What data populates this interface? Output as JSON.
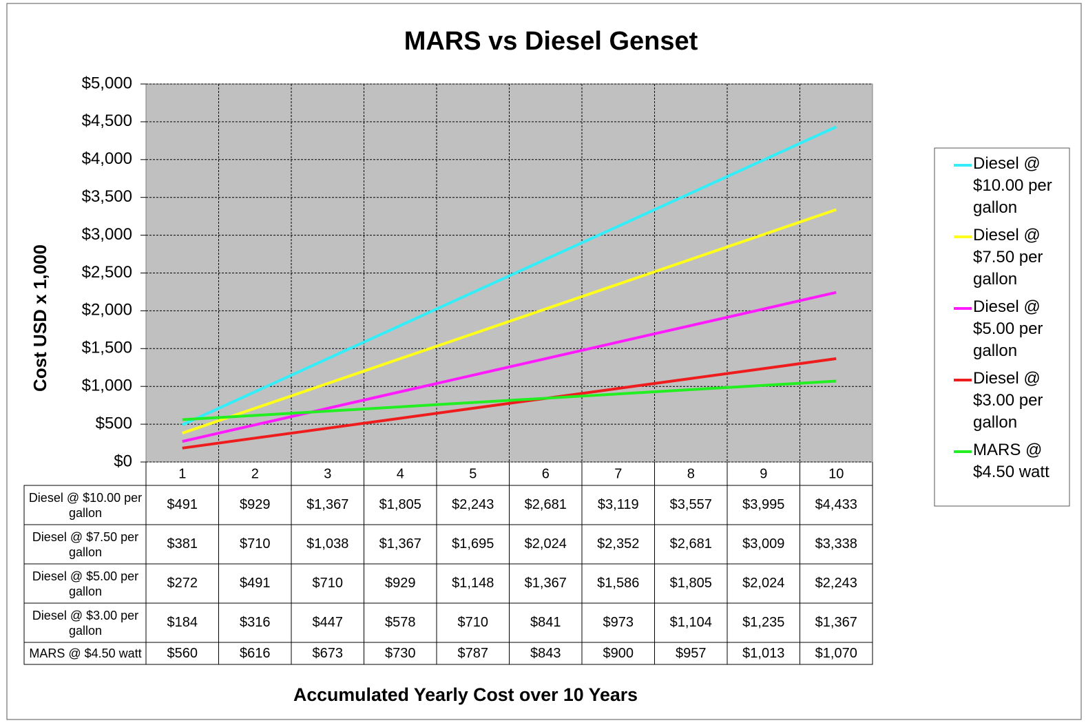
{
  "chart_data": {
    "type": "line",
    "title": "MARS vs Diesel Genset",
    "x_label": "Accumulated Yearly Cost over 10 Years",
    "y_label": "Cost USD x 1,000",
    "categories": [
      "1",
      "2",
      "3",
      "4",
      "5",
      "6",
      "7",
      "8",
      "9",
      "10"
    ],
    "series": [
      {
        "name": "Diesel @ $10.00 per gallon",
        "color": "#33eef8",
        "values": [
          491,
          929,
          1367,
          1805,
          2243,
          2681,
          3119,
          3557,
          3995,
          4433
        ],
        "value_labels": [
          "$491",
          "$929",
          "$1,367",
          "$1,805",
          "$2,243",
          "$2,681",
          "$3,119",
          "$3,557",
          "$3,995",
          "$4,433"
        ]
      },
      {
        "name": "Diesel @ $7.50 per gallon",
        "color": "#ffff1a",
        "values": [
          381,
          710,
          1038,
          1367,
          1695,
          2024,
          2352,
          2681,
          3009,
          3338
        ],
        "value_labels": [
          "$381",
          "$710",
          "$1,038",
          "$1,367",
          "$1,695",
          "$2,024",
          "$2,352",
          "$2,681",
          "$3,009",
          "$3,338"
        ]
      },
      {
        "name": "Diesel @ $5.00 per gallon",
        "color": "#ff1aff",
        "values": [
          272,
          491,
          710,
          929,
          1148,
          1367,
          1586,
          1805,
          2024,
          2243
        ],
        "value_labels": [
          "$272",
          "$491",
          "$710",
          "$929",
          "$1,148",
          "$1,367",
          "$1,586",
          "$1,805",
          "$2,024",
          "$2,243"
        ]
      },
      {
        "name": "Diesel @ $3.00 per gallon",
        "color": "#ee1c1c",
        "values": [
          184,
          316,
          447,
          578,
          710,
          841,
          973,
          1104,
          1235,
          1367
        ],
        "value_labels": [
          "$184",
          "$316",
          "$447",
          "$578",
          "$710",
          "$841",
          "$973",
          "$1,104",
          "$1,235",
          "$1,367"
        ]
      },
      {
        "name": "MARS @ $4.50 watt",
        "color": "#22ee22",
        "values": [
          560,
          616,
          673,
          730,
          787,
          843,
          900,
          957,
          1013,
          1070
        ],
        "value_labels": [
          "$560",
          "$616",
          "$673",
          "$730",
          "$787",
          "$843",
          "$900",
          "$957",
          "$1,013",
          "$1,070"
        ]
      }
    ],
    "ylim": [
      0,
      5000
    ],
    "yticks": [
      {
        "value": 0,
        "label": "$0"
      },
      {
        "value": 500,
        "label": "$500"
      },
      {
        "value": 1000,
        "label": "$1,000"
      },
      {
        "value": 1500,
        "label": "$1,500"
      },
      {
        "value": 2000,
        "label": "$2,000"
      },
      {
        "value": 2500,
        "label": "$2,500"
      },
      {
        "value": 3000,
        "label": "$3,000"
      },
      {
        "value": 3500,
        "label": "$3,500"
      },
      {
        "value": 4000,
        "label": "$4,000"
      },
      {
        "value": 4500,
        "label": "$4,500"
      },
      {
        "value": 5000,
        "label": "$5,000"
      }
    ],
    "grid": true,
    "legend": "right"
  }
}
